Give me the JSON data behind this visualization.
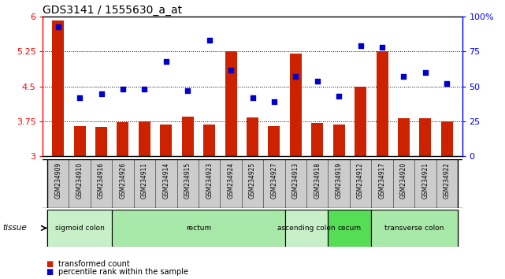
{
  "title": "GDS3141 / 1555630_a_at",
  "samples": [
    "GSM234909",
    "GSM234910",
    "GSM234916",
    "GSM234926",
    "GSM234911",
    "GSM234914",
    "GSM234915",
    "GSM234923",
    "GSM234924",
    "GSM234925",
    "GSM234927",
    "GSM234913",
    "GSM234918",
    "GSM234919",
    "GSM234912",
    "GSM234917",
    "GSM234920",
    "GSM234921",
    "GSM234922"
  ],
  "bar_values": [
    5.92,
    3.65,
    3.63,
    3.73,
    3.75,
    3.68,
    3.85,
    3.68,
    5.26,
    3.83,
    3.65,
    5.2,
    3.72,
    3.68,
    4.5,
    5.25,
    3.82,
    3.82,
    3.75
  ],
  "dot_values": [
    93,
    42,
    45,
    48,
    48,
    68,
    47,
    83,
    62,
    42,
    39,
    57,
    54,
    43,
    79,
    78,
    57,
    60,
    52
  ],
  "ylim_left": [
    3.0,
    6.0
  ],
  "ylim_right": [
    0,
    100
  ],
  "yticks_left": [
    3.0,
    3.75,
    4.5,
    5.25,
    6.0
  ],
  "ytick_labels_left": [
    "3",
    "3.75",
    "4.5",
    "5.25",
    "6"
  ],
  "yticks_right": [
    0,
    25,
    50,
    75,
    100
  ],
  "ytick_labels_right": [
    "0",
    "25",
    "50",
    "75",
    "100%"
  ],
  "hlines": [
    3.75,
    4.5,
    5.25
  ],
  "bar_color": "#cc2200",
  "dot_color": "#0000cc",
  "tissue_groups": [
    {
      "label": "sigmoid colon",
      "start": 0,
      "end": 3,
      "color": "#c8f0c8"
    },
    {
      "label": "rectum",
      "start": 3,
      "end": 11,
      "color": "#a8e8a8"
    },
    {
      "label": "ascending colon",
      "start": 11,
      "end": 13,
      "color": "#c8f0c8"
    },
    {
      "label": "cecum",
      "start": 13,
      "end": 15,
      "color": "#55dd55"
    },
    {
      "label": "transverse colon",
      "start": 15,
      "end": 19,
      "color": "#a8e8a8"
    }
  ],
  "tissue_label": "tissue",
  "legend_bar": "transformed count",
  "legend_dot": "percentile rank within the sample",
  "title_fontsize": 10,
  "tick_fontsize": 8,
  "bar_width": 0.55,
  "sample_bg": "#cccccc",
  "plot_bg": "#ffffff"
}
